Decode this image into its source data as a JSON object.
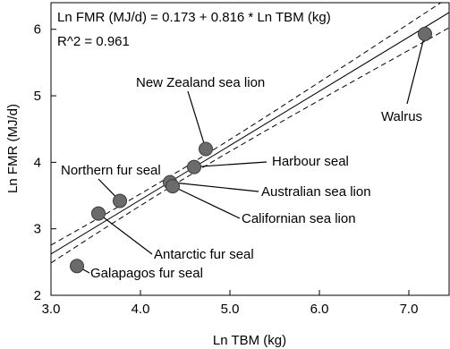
{
  "chart_data": {
    "type": "scatter",
    "equation": "Ln FMR (MJ/d) = 0.173 + 0.816 * Ln TBM (kg)",
    "r_squared": "R^2 = 0.961",
    "xlabel": "Ln TBM (kg)",
    "ylabel": "Ln FMR (MJ/d)",
    "xlim": [
      3.0,
      7.45
    ],
    "ylim": [
      2.0,
      6.4
    ],
    "xticks": [
      3.0,
      4.0,
      5.0,
      6.0,
      7.0
    ],
    "xtick_labels": [
      "3.0",
      "4.0",
      "5.0",
      "6.0",
      "7.0"
    ],
    "yticks": [
      2,
      3,
      4,
      5,
      6
    ],
    "ytick_labels": [
      "2",
      "3",
      "4",
      "5",
      "6"
    ],
    "regression": {
      "intercept": 0.173,
      "slope": 0.816
    },
    "confidence_band": "dashed",
    "points": [
      {
        "name": "Galapagos fur seal",
        "x": 3.29,
        "y": 2.44
      },
      {
        "name": "Antarctic fur seal",
        "x": 3.53,
        "y": 3.23
      },
      {
        "name": "Northern fur seal",
        "x": 3.77,
        "y": 3.42
      },
      {
        "name": "Australian sea lion",
        "x": 4.33,
        "y": 3.7
      },
      {
        "name": "Californian sea lion",
        "x": 4.36,
        "y": 3.64
      },
      {
        "name": "Harbour seal",
        "x": 4.6,
        "y": 3.93
      },
      {
        "name": "New Zealand sea lion",
        "x": 4.73,
        "y": 4.2
      },
      {
        "name": "Walrus",
        "x": 7.18,
        "y": 5.93
      }
    ]
  }
}
